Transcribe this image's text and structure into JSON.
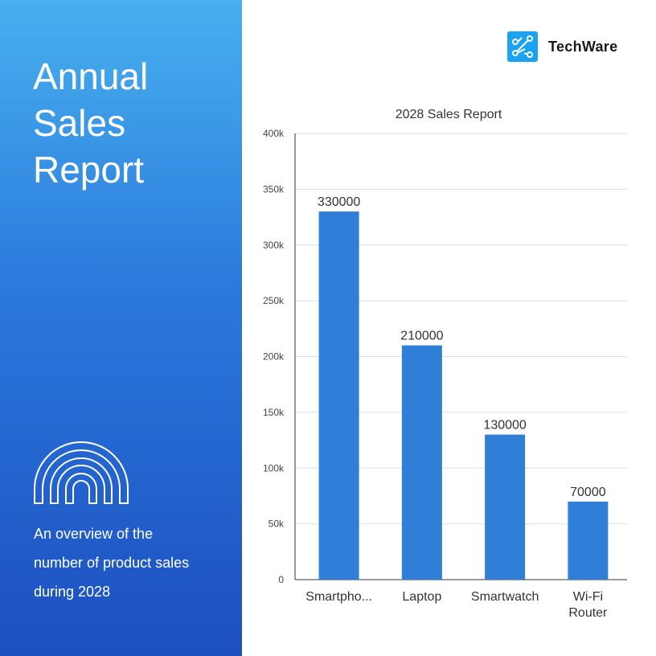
{
  "sidebar": {
    "title": "Annual Sales Report",
    "description": "An overview of the number of product sales during 2028",
    "icon": "rainbow-arch-icon"
  },
  "brand": {
    "name": "TechWare",
    "icon": "circuit-logo-icon",
    "color": "#1aa3f0"
  },
  "colors": {
    "bar": "#2f7fd8",
    "gradient_top": "#48b0ee",
    "gradient_bottom": "#1d4fc0"
  },
  "chart_data": {
    "type": "bar",
    "title": "2028 Sales Report",
    "categories": [
      "Smartpho...",
      "Laptop",
      "Smartwatch",
      "Wi-Fi Router"
    ],
    "values": [
      330000,
      210000,
      130000,
      70000
    ],
    "data_labels": [
      "330000",
      "210000",
      "130000",
      "70000"
    ],
    "ylim": [
      0,
      400000
    ],
    "yticks": [
      0,
      50000,
      100000,
      150000,
      200000,
      250000,
      300000,
      350000,
      400000
    ],
    "ytick_labels": [
      "0",
      "50k",
      "100k",
      "150k",
      "200k",
      "250k",
      "300k",
      "350k",
      "400k"
    ],
    "grid": true,
    "legend": "none"
  }
}
